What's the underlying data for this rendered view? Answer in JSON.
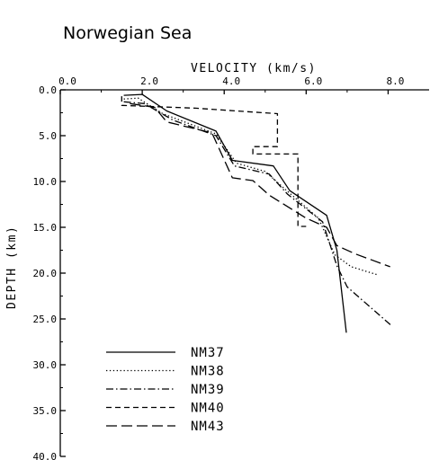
{
  "chart_data": {
    "type": "line",
    "title": "Norwegian Sea",
    "xlabel": "VELOCITY (km/s)",
    "ylabel": "DEPTH (km)",
    "xlim": [
      0.0,
      9.0
    ],
    "ylim": [
      0.0,
      40.0
    ],
    "y_inverted": true,
    "x_axis_position": "top",
    "xticks": [
      "0.0",
      "2.0",
      "4.0",
      "6.0",
      "8.0"
    ],
    "yticks": [
      "0.0",
      "5.0",
      "10.0",
      "15.0",
      "20.0",
      "25.0",
      "30.0",
      "35.0",
      "40.0"
    ],
    "grid": false,
    "legend_position": "bottom-left",
    "series": [
      {
        "name": "NM37",
        "dash": "solid",
        "points": [
          [
            1.55,
            0.6
          ],
          [
            2.0,
            0.5
          ],
          [
            2.6,
            2.3
          ],
          [
            3.8,
            4.5
          ],
          [
            4.2,
            7.7
          ],
          [
            5.2,
            8.3
          ],
          [
            5.6,
            11.0
          ],
          [
            6.5,
            13.7
          ],
          [
            6.75,
            17.5
          ],
          [
            6.98,
            26.5
          ]
        ]
      },
      {
        "name": "NM38",
        "dash": "dotted",
        "points": [
          [
            1.55,
            1.0
          ],
          [
            1.9,
            0.9
          ],
          [
            2.5,
            2.6
          ],
          [
            3.8,
            4.8
          ],
          [
            4.3,
            8.0
          ],
          [
            5.0,
            8.9
          ],
          [
            5.5,
            10.9
          ],
          [
            6.3,
            14.0
          ],
          [
            6.7,
            18.0
          ],
          [
            7.1,
            19.3
          ],
          [
            7.75,
            20.2
          ]
        ]
      },
      {
        "name": "NM39",
        "dash": "dashdot",
        "points": [
          [
            1.55,
            1.3
          ],
          [
            2.05,
            1.5
          ],
          [
            2.75,
            3.3
          ],
          [
            3.8,
            5.0
          ],
          [
            4.25,
            8.3
          ],
          [
            5.1,
            9.2
          ],
          [
            5.55,
            11.4
          ],
          [
            6.4,
            14.4
          ],
          [
            6.75,
            19.2
          ],
          [
            7.0,
            21.5
          ],
          [
            8.1,
            25.8
          ]
        ]
      },
      {
        "name": "NM40",
        "dash": "dashed",
        "points": [
          [
            1.5,
            0.7
          ],
          [
            1.5,
            1.7
          ],
          [
            3.3,
            2.0
          ],
          [
            4.3,
            2.3
          ],
          [
            5.3,
            2.6
          ],
          [
            5.3,
            6.2
          ],
          [
            4.7,
            6.2
          ],
          [
            4.7,
            7.0
          ],
          [
            5.8,
            7.0
          ],
          [
            5.8,
            14.9
          ],
          [
            6.0,
            14.9
          ]
        ]
      },
      {
        "name": "NM43",
        "dash": "longdash",
        "points": [
          [
            1.7,
            1.5
          ],
          [
            2.3,
            1.9
          ],
          [
            2.6,
            3.5
          ],
          [
            3.7,
            4.7
          ],
          [
            4.2,
            9.6
          ],
          [
            4.7,
            9.9
          ],
          [
            5.1,
            11.5
          ],
          [
            6.0,
            14.0
          ],
          [
            6.5,
            15.0
          ],
          [
            6.75,
            17.0
          ],
          [
            7.2,
            17.9
          ],
          [
            8.05,
            19.3
          ]
        ]
      }
    ]
  }
}
